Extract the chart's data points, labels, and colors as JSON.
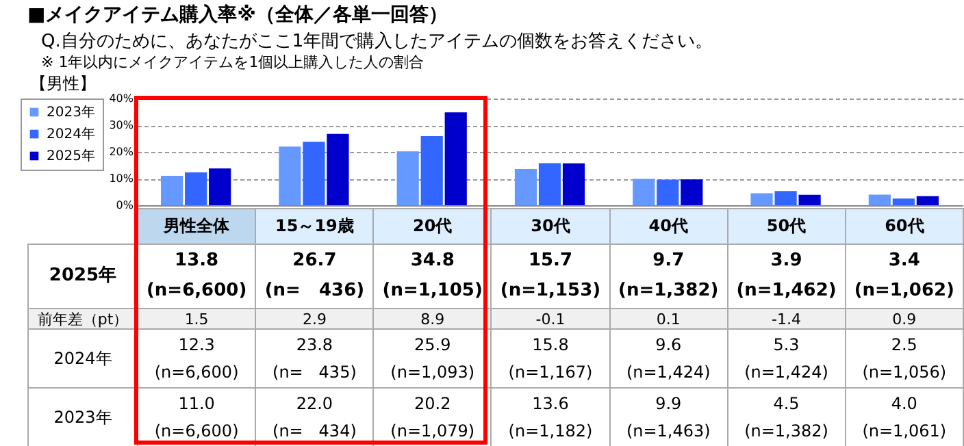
{
  "chart_data": {
    "type": "bar",
    "title": "■メイクアイテム購入率※（全体／各単一回答）",
    "subtitle": "Q.自分のために、あなたがここ1年間で購入したアイテムの個数をお答えください。",
    "annotations": [
      "※ 1年以内にメイクアイテムを1個以上購入した人の割合",
      "【男性】",
      "前年差（pt）",
      "1.5",
      "2.9",
      "8.9",
      "-0.1",
      "0.1",
      "-1.4",
      "0.9",
      "(n=6,600)",
      "(n=   436)",
      "(n=1,105)",
      "(n=1,153)",
      "(n=1,382)",
      "(n=1,462)",
      "(n=1,062)",
      "(n=6,600)",
      "(n=   435)",
      "(n=1,093)",
      "(n=1,167)",
      "(n=1,424)",
      "(n=1,424)",
      "(n=1,056)",
      "(n=6,600)",
      "(n=   434)",
      "(n=1,079)",
      "(n=1,182)",
      "(n=1,463)",
      "(n=1,382)",
      "(n=1,061)"
    ],
    "categories": [
      "男性全体",
      "15～19歳",
      "20代",
      "30代",
      "40代",
      "50代",
      "60代"
    ],
    "series": [
      {
        "name": "2023年",
        "color": "#6699ff",
        "values": [
          11.0,
          22.0,
          20.2,
          13.6,
          9.9,
          4.5,
          4.0
        ],
        "value_labels": [
          "11.0",
          "22.0",
          "20.2",
          "13.6",
          "9.9",
          "4.5",
          "4.0"
        ]
      },
      {
        "name": "2024年",
        "color": "#3366ff",
        "values": [
          12.3,
          23.8,
          25.9,
          15.8,
          9.6,
          5.3,
          2.5
        ],
        "value_labels": [
          "12.3",
          "23.8",
          "25.9",
          "15.8",
          "9.6",
          "5.3",
          "2.5"
        ]
      },
      {
        "name": "2025年",
        "color": "#0000cc",
        "values": [
          13.8,
          26.7,
          34.8,
          15.7,
          9.7,
          3.9,
          3.4
        ],
        "value_labels": [
          "13.8",
          "26.7",
          "34.8",
          "15.7",
          "9.7",
          "3.9",
          "3.4"
        ]
      }
    ],
    "ylim": [
      0,
      40
    ],
    "yticks": [
      {
        "value": 0,
        "label": "0%"
      },
      {
        "value": 10,
        "label": "10%"
      },
      {
        "value": 20,
        "label": "20%"
      },
      {
        "value": 30,
        "label": "30%"
      },
      {
        "value": 40,
        "label": "40%"
      }
    ],
    "grid": "y",
    "legend": "left"
  }
}
